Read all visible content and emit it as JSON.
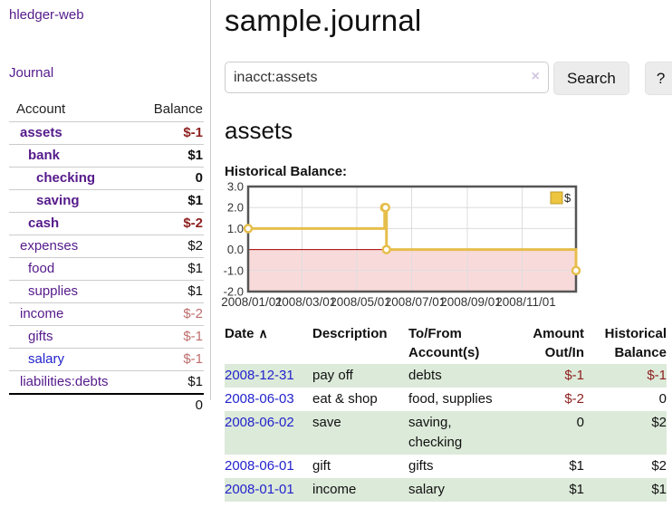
{
  "colors": {
    "link_purple": "#551a8b",
    "link_blue": "#2323cc",
    "negative_strong": "#8e1f1f",
    "negative_soft": "#bf6d6d",
    "row_green": "#dcead9",
    "chart_line": "#e6be4c",
    "chart_negative_fill": "#f9dada",
    "chart_zero_line": "#a40000",
    "legend_fill": "#edc53f",
    "legend_border": "#bd9b2f"
  },
  "sidebar": {
    "brand": "hledger-web",
    "journal_link": "Journal",
    "table": {
      "account_header": "Account",
      "balance_header": "Balance",
      "total": "0"
    },
    "accounts": [
      {
        "name": "assets",
        "balance": "$-1",
        "indent": 1,
        "bold": true,
        "neg": "strong"
      },
      {
        "name": "bank",
        "balance": "$1",
        "indent": 2,
        "bold": true
      },
      {
        "name": "checking",
        "balance": "0",
        "indent": 3,
        "bold": true
      },
      {
        "name": "saving",
        "balance": "$1",
        "indent": 3,
        "bold": true
      },
      {
        "name": "cash",
        "balance": "$-2",
        "indent": 2,
        "bold": true,
        "neg": "strong"
      },
      {
        "name": "expenses",
        "balance": "$2",
        "indent": 1
      },
      {
        "name": "food",
        "balance": "$1",
        "indent": 2
      },
      {
        "name": "supplies",
        "balance": "$1",
        "indent": 2
      },
      {
        "name": "income",
        "balance": "$-2",
        "indent": 1,
        "neg": "soft"
      },
      {
        "name": "gifts",
        "balance": "$-1",
        "indent": 2,
        "neg": "soft"
      },
      {
        "name": "salary",
        "balance": "$-1",
        "indent": 2,
        "neg": "soft",
        "link_color": "blue"
      },
      {
        "name": "liabilities:debts",
        "balance": "$1",
        "indent": 1
      }
    ]
  },
  "header": {
    "title": "sample.journal"
  },
  "search": {
    "value": "inacct:assets",
    "clear_icon": "×",
    "search_button": "Search",
    "help_button": "?"
  },
  "content": {
    "account_heading": "assets",
    "chart_heading": "Historical Balance:"
  },
  "chart_data": {
    "type": "line",
    "step": true,
    "title": "Historical Balance",
    "legend_label": "$",
    "legend_position": "top-right",
    "grid": true,
    "ylim": [
      -2,
      3
    ],
    "yticks": [
      3.0,
      2.0,
      1.0,
      0.0,
      -1.0,
      -2.0
    ],
    "x_max_day": 365,
    "xticks": [
      {
        "label": "2008/01/01",
        "day": 0
      },
      {
        "label": "2008/03/01",
        "day": 60
      },
      {
        "label": "2008/05/01",
        "day": 121
      },
      {
        "label": "2008/07/01",
        "day": 182
      },
      {
        "label": "2008/09/01",
        "day": 244
      },
      {
        "label": "2008/11/01",
        "day": 305
      }
    ],
    "points": [
      {
        "date": "2008-01-01",
        "day": 0,
        "value": 1
      },
      {
        "date": "2008-06-01",
        "day": 152,
        "value": 2
      },
      {
        "date": "2008-06-02",
        "day": 153,
        "value": 2
      },
      {
        "date": "2008-06-03",
        "day": 154,
        "value": 0
      },
      {
        "date": "2008-12-31",
        "day": 365,
        "value": -1
      }
    ]
  },
  "register": {
    "sort_icon": "∧",
    "headers": {
      "date": "Date",
      "description": "Description",
      "accounts": "To/From Account(s)",
      "amount": "Amount Out/In",
      "balance": "Historical Balance"
    },
    "rows": [
      {
        "date": "2008-12-31",
        "description": "pay off",
        "accounts": "debts",
        "amount": "$-1",
        "balance": "$-1",
        "shaded": true
      },
      {
        "date": "2008-06-03",
        "description": "eat & shop",
        "accounts": "food, supplies",
        "amount": "$-2",
        "balance": "0",
        "shaded": false
      },
      {
        "date": "2008-06-02",
        "description": "save",
        "accounts": "saving, checking",
        "amount": "0",
        "balance": "$2",
        "shaded": true
      },
      {
        "date": "2008-06-01",
        "description": "gift",
        "accounts": "gifts",
        "amount": "$1",
        "balance": "$2",
        "shaded": false
      },
      {
        "date": "2008-01-01",
        "description": "income",
        "accounts": "salary",
        "amount": "$1",
        "balance": "$1",
        "shaded": true
      }
    ]
  }
}
